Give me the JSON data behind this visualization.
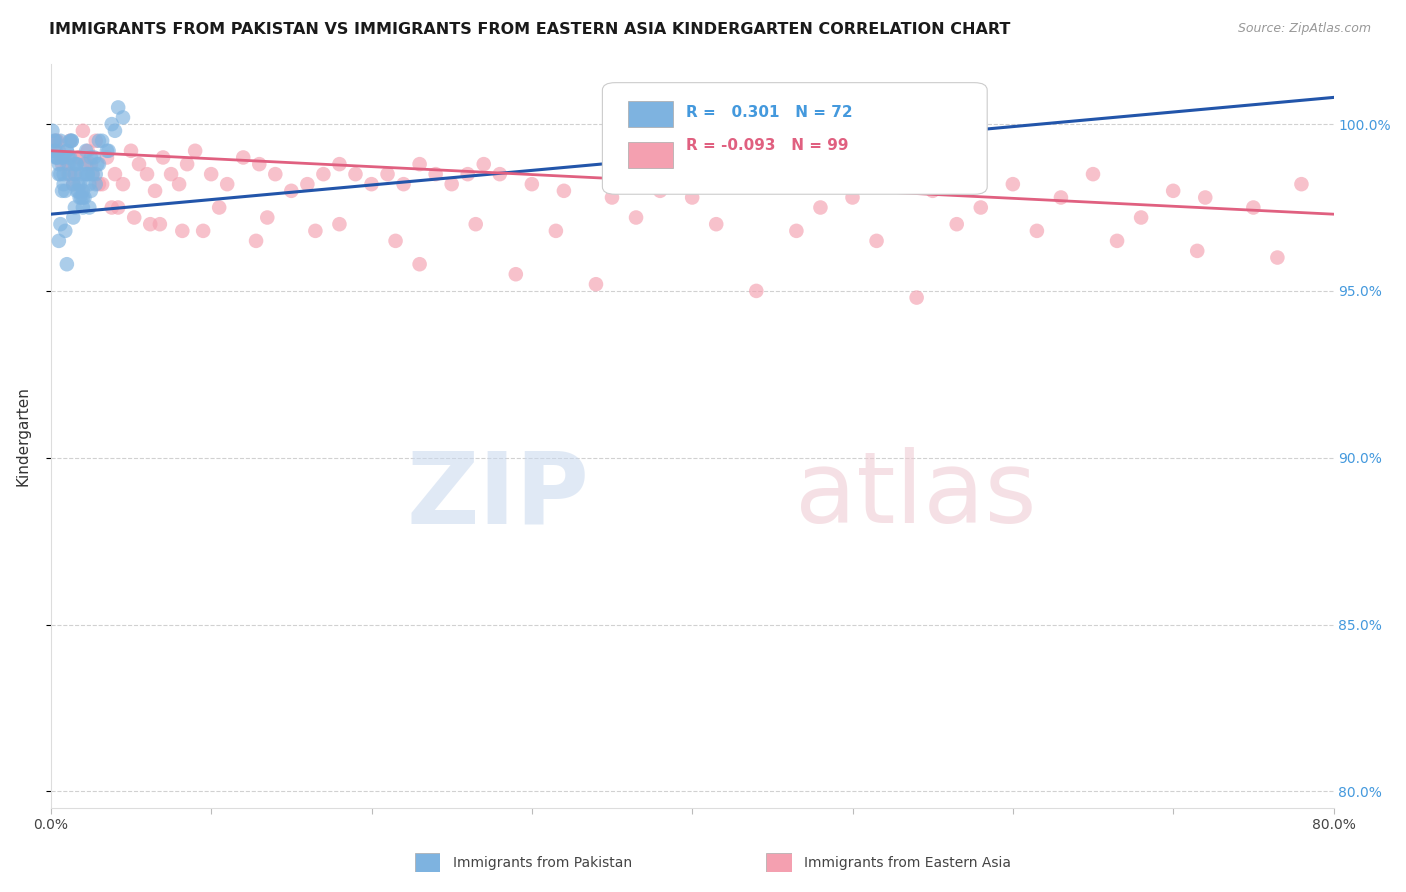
{
  "title": "IMMIGRANTS FROM PAKISTAN VS IMMIGRANTS FROM EASTERN ASIA KINDERGARTEN CORRELATION CHART",
  "source": "Source: ZipAtlas.com",
  "ylabel": "Kindergarten",
  "blue_color": "#7EB3E0",
  "pink_color": "#F4A0B0",
  "blue_line_color": "#2255AA",
  "pink_line_color": "#E06080",
  "xlim": [
    0.0,
    80.0
  ],
  "ylim": [
    79.5,
    101.8
  ],
  "right_yticks": [
    80.0,
    85.0,
    90.0,
    95.0,
    100.0
  ],
  "pakistan_x": [
    0.1,
    0.2,
    0.3,
    0.4,
    0.5,
    0.6,
    0.7,
    0.8,
    0.9,
    1.0,
    1.1,
    1.2,
    1.3,
    1.4,
    1.5,
    1.6,
    1.7,
    1.8,
    1.9,
    2.0,
    2.1,
    2.2,
    2.3,
    2.4,
    2.5,
    2.6,
    2.7,
    2.8,
    2.9,
    3.0,
    0.3,
    0.5,
    0.7,
    1.0,
    1.2,
    1.5,
    1.8,
    2.0,
    0.4,
    0.6,
    0.8,
    1.1,
    1.3,
    1.6,
    1.9,
    2.2,
    2.5,
    3.2,
    3.8,
    4.2,
    0.2,
    0.9,
    1.4,
    2.1,
    2.8,
    3.5,
    1.7,
    2.3,
    0.5,
    1.0,
    0.3,
    0.7,
    1.2,
    1.6,
    2.0,
    2.4,
    3.0,
    3.6,
    4.0,
    4.5,
    0.6,
    1.5
  ],
  "pakistan_y": [
    99.8,
    99.5,
    99.2,
    99.0,
    98.8,
    99.5,
    99.0,
    98.5,
    98.0,
    99.2,
    98.8,
    99.0,
    99.5,
    98.2,
    98.5,
    98.8,
    98.2,
    97.8,
    98.5,
    98.0,
    98.8,
    99.2,
    98.5,
    97.5,
    98.0,
    98.5,
    99.0,
    98.2,
    98.8,
    99.5,
    99.0,
    98.5,
    98.0,
    99.2,
    99.5,
    98.8,
    98.2,
    97.8,
    99.0,
    98.5,
    98.2,
    99.0,
    99.5,
    98.8,
    97.8,
    98.5,
    99.0,
    99.5,
    100.0,
    100.5,
    99.2,
    96.8,
    97.2,
    97.8,
    98.5,
    99.2,
    98.0,
    98.5,
    96.5,
    95.8,
    99.5,
    99.0,
    98.5,
    98.0,
    97.5,
    98.2,
    98.8,
    99.2,
    99.8,
    100.2,
    97.0,
    97.5
  ],
  "eastern_x": [
    0.3,
    0.5,
    0.8,
    1.0,
    1.2,
    1.5,
    1.8,
    2.0,
    2.3,
    2.5,
    2.8,
    3.0,
    3.5,
    4.0,
    4.5,
    5.0,
    5.5,
    6.0,
    6.5,
    7.0,
    7.5,
    8.0,
    8.5,
    9.0,
    10.0,
    11.0,
    12.0,
    13.0,
    14.0,
    15.0,
    16.0,
    17.0,
    18.0,
    19.0,
    20.0,
    21.0,
    22.0,
    23.0,
    24.0,
    25.0,
    26.0,
    27.0,
    28.0,
    30.0,
    32.0,
    35.0,
    38.0,
    40.0,
    42.0,
    45.0,
    48.0,
    50.0,
    55.0,
    58.0,
    60.0,
    63.0,
    65.0,
    68.0,
    70.0,
    72.0,
    75.0,
    78.0,
    0.4,
    0.7,
    1.1,
    1.4,
    1.7,
    2.2,
    2.6,
    3.2,
    4.2,
    5.2,
    6.8,
    8.2,
    10.5,
    13.5,
    16.5,
    21.5,
    26.5,
    31.5,
    36.5,
    41.5,
    46.5,
    51.5,
    56.5,
    61.5,
    66.5,
    71.5,
    76.5,
    3.8,
    6.2,
    9.5,
    12.8,
    18.0,
    23.0,
    29.0,
    34.0,
    44.0,
    54.0
  ],
  "eastern_y": [
    99.5,
    99.2,
    99.0,
    98.8,
    99.5,
    98.5,
    99.0,
    99.8,
    99.2,
    98.8,
    99.5,
    98.2,
    99.0,
    98.5,
    98.2,
    99.2,
    98.8,
    98.5,
    98.0,
    99.0,
    98.5,
    98.2,
    98.8,
    99.2,
    98.5,
    98.2,
    99.0,
    98.8,
    98.5,
    98.0,
    98.2,
    98.5,
    98.8,
    98.5,
    98.2,
    98.5,
    98.2,
    98.8,
    98.5,
    98.2,
    98.5,
    98.8,
    98.5,
    98.2,
    98.0,
    97.8,
    98.0,
    97.8,
    98.2,
    98.5,
    97.5,
    97.8,
    98.0,
    97.5,
    98.2,
    97.8,
    98.5,
    97.2,
    98.0,
    97.8,
    97.5,
    98.2,
    99.5,
    98.8,
    98.5,
    98.2,
    99.0,
    98.8,
    98.5,
    98.2,
    97.5,
    97.2,
    97.0,
    96.8,
    97.5,
    97.2,
    96.8,
    96.5,
    97.0,
    96.8,
    97.2,
    97.0,
    96.8,
    96.5,
    97.0,
    96.8,
    96.5,
    96.2,
    96.0,
    97.5,
    97.0,
    96.8,
    96.5,
    97.0,
    95.8,
    95.5,
    95.2,
    95.0,
    94.8
  ]
}
